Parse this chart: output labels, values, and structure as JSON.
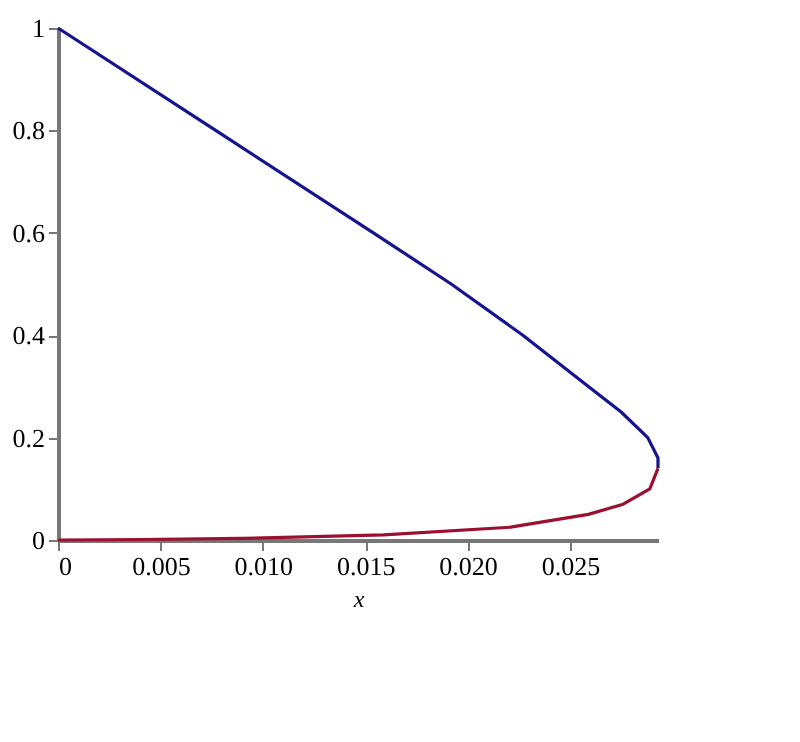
{
  "chart_data": {
    "type": "line",
    "xlabel": "x",
    "series": [
      {
        "color": "#14148c",
        "x": [
          0,
          0.0077,
          0.0154,
          0.0192,
          0.0227,
          0.0259,
          0.0275,
          0.0288,
          0.0293,
          0.0293
        ],
        "values": [
          1,
          0.8,
          0.6,
          0.5,
          0.4,
          0.3,
          0.25,
          0.2,
          0.16,
          0.14
        ]
      },
      {
        "color": "#9b1030",
        "x": [
          0.0293,
          0.0289,
          0.0276,
          0.0259,
          0.0221,
          0.0159,
          0.009,
          0.004,
          0
        ],
        "values": [
          0.14,
          0.1,
          0.07,
          0.05,
          0.025,
          0.01,
          0.003,
          0.001,
          0
        ]
      }
    ],
    "xlim": [
      0,
      0.0293
    ],
    "ylim": [
      0,
      1
    ],
    "xticks": [
      0,
      0.005,
      {
        "value": 0.01,
        "label": "0.010"
      },
      0.015,
      {
        "value": 0.02,
        "label": "0.020"
      },
      0.025
    ],
    "yticks": [
      0,
      0.2,
      0.4,
      0.6,
      0.8,
      1
    ],
    "grid": false,
    "line_style": "solid",
    "marker": "none"
  }
}
